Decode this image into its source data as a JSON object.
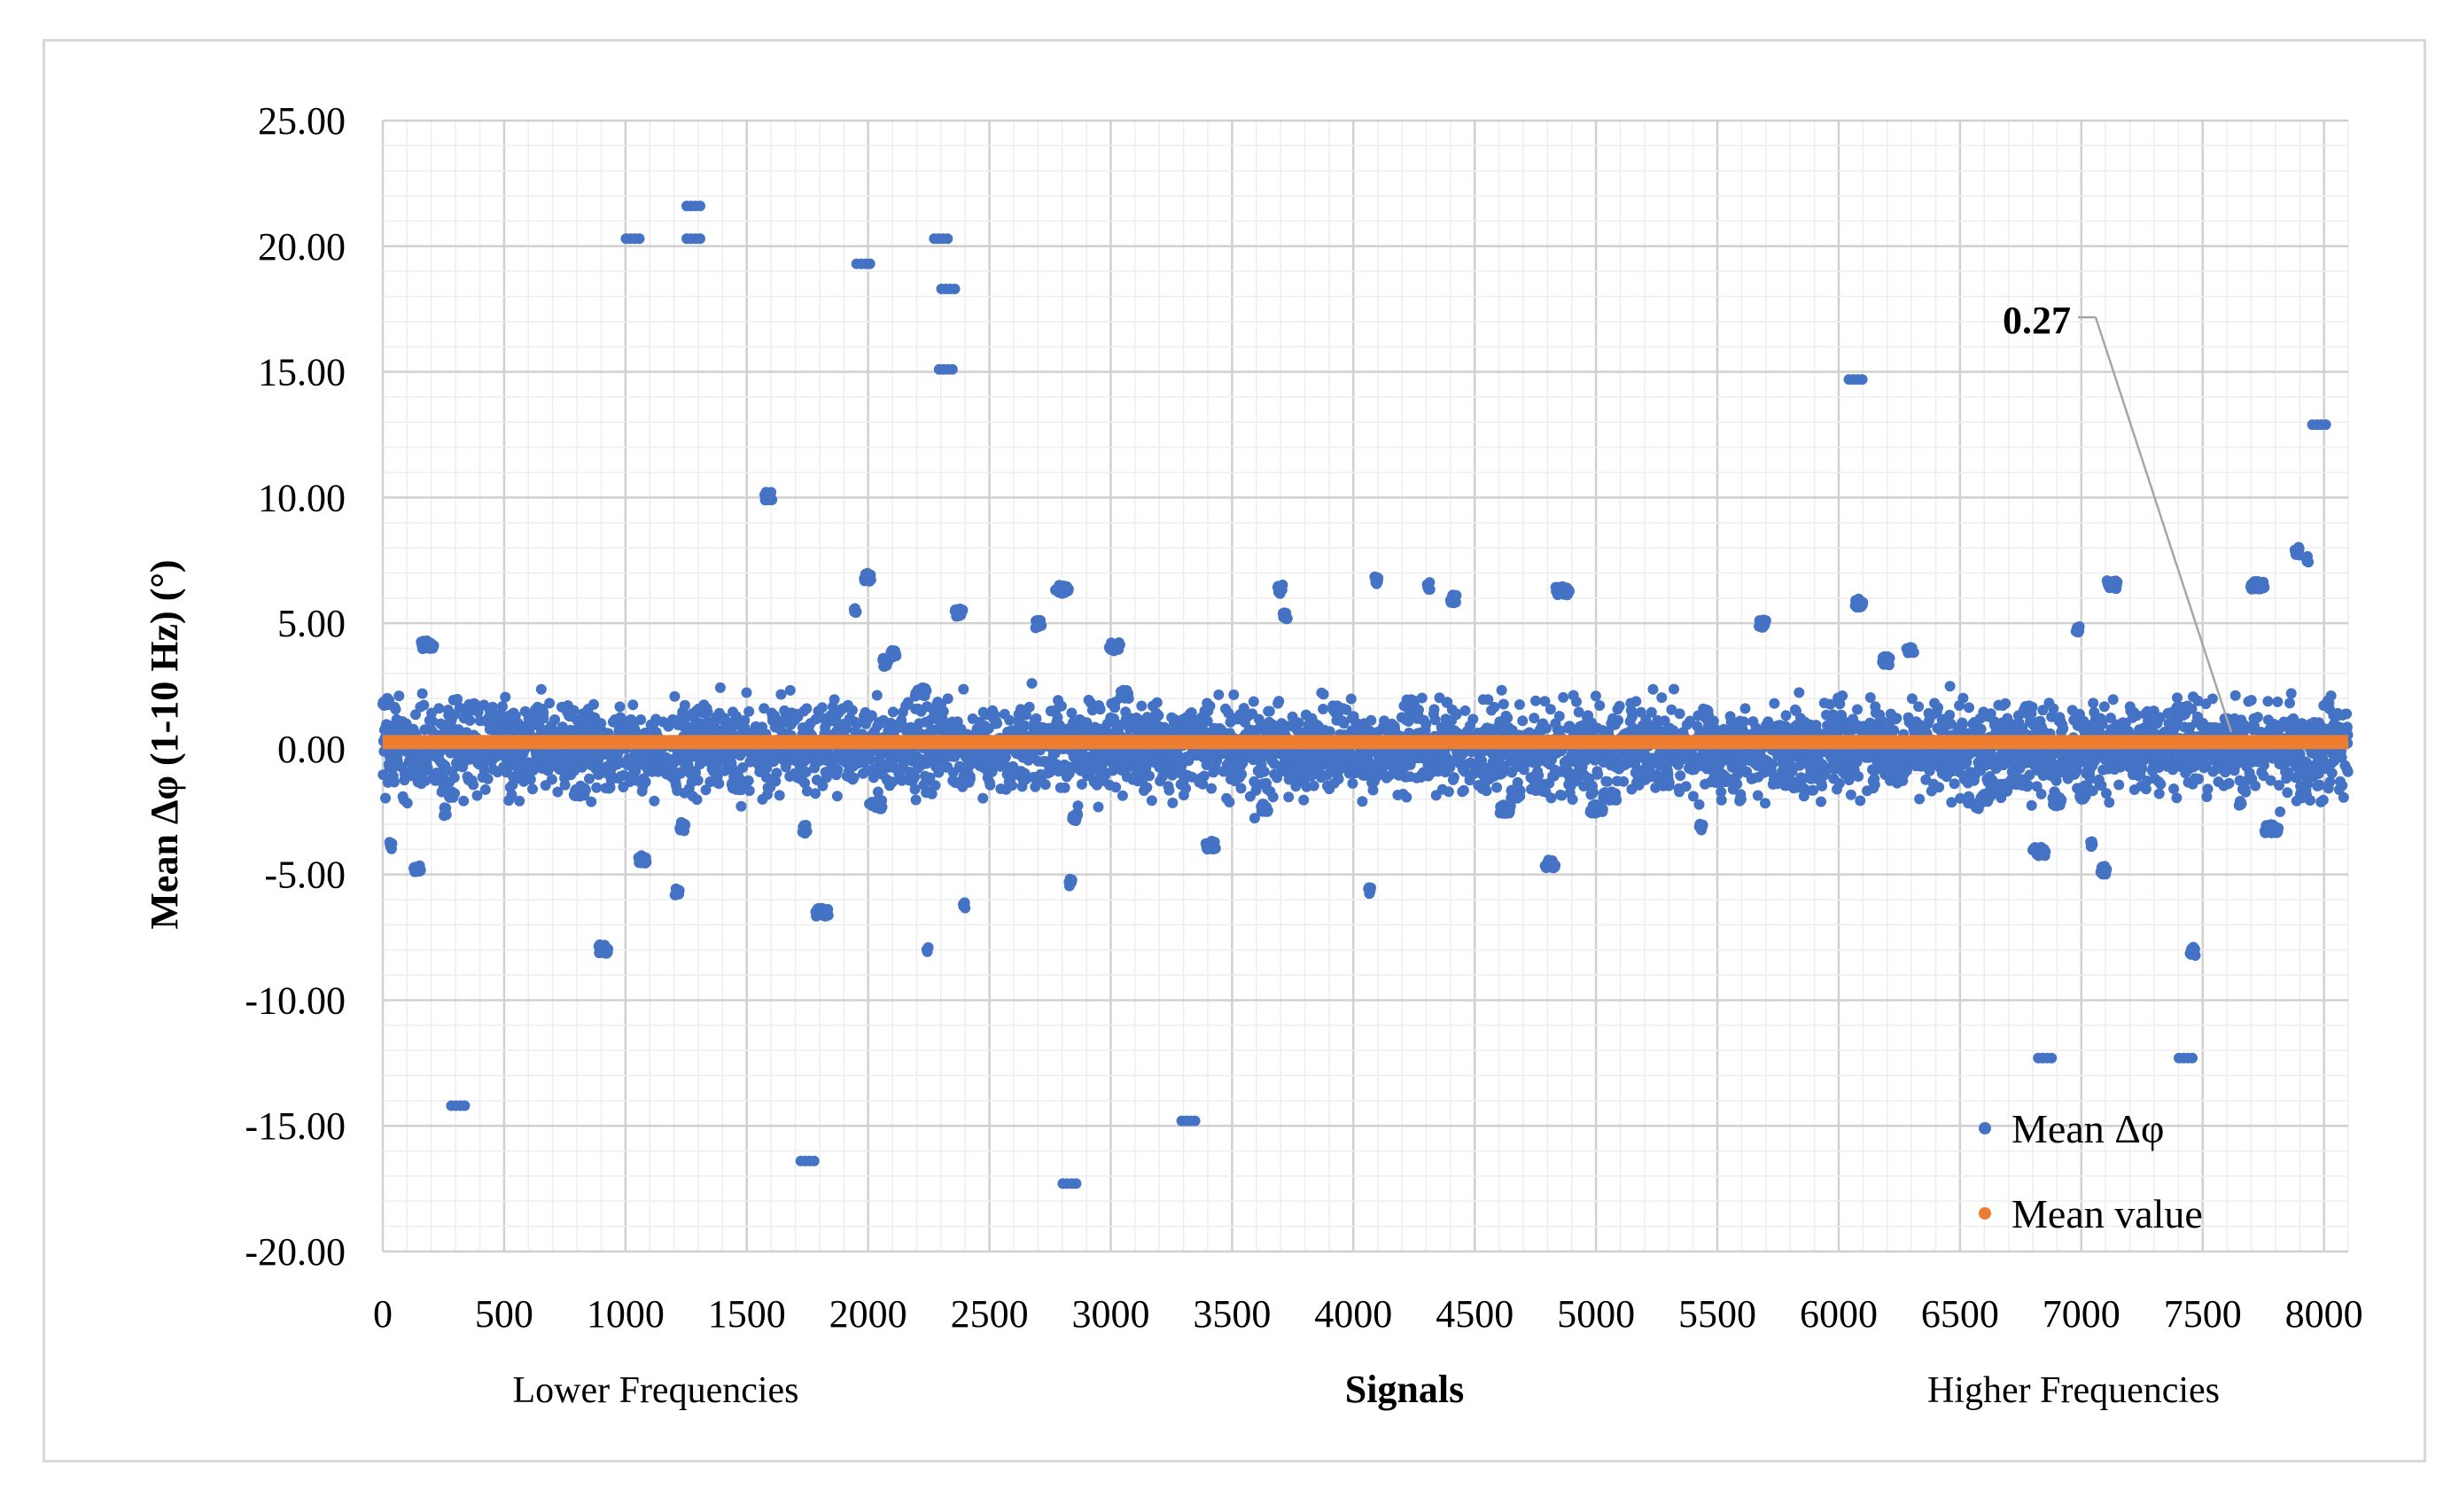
{
  "chart_data": {
    "type": "scatter",
    "title": "",
    "xlabel": "Signals",
    "ylabel": "Mean  Δφ (1-10 Hz)  (°)",
    "xlim": [
      0,
      8100
    ],
    "ylim": [
      -20,
      25
    ],
    "x_ticks": [
      "0",
      "500",
      "1000",
      "1500",
      "2000",
      "2500",
      "3000",
      "3500",
      "4000",
      "4500",
      "5000",
      "5500",
      "6000",
      "6500",
      "7000",
      "7500",
      "8000"
    ],
    "y_ticks": [
      "25.00",
      "20.00",
      "15.00",
      "10.00",
      "5.00",
      "0.00",
      "-5.00",
      "-10.00",
      "-15.00",
      "-20.00"
    ],
    "x_notes": {
      "left": "Lower Frequencies",
      "right": "Higher Frequencies"
    },
    "grid": true,
    "legend_position": "bottom-right",
    "series": [
      {
        "name": "Mean Δφ",
        "color": "#4472C4",
        "n_points": 8100,
        "extremes": [
          {
            "x": 1030,
            "y": 20.3
          },
          {
            "x": 1280,
            "y": 21.6
          },
          {
            "x": 1280,
            "y": 20.3
          },
          {
            "x": 1980,
            "y": 19.3
          },
          {
            "x": 2300,
            "y": 20.3
          },
          {
            "x": 2330,
            "y": 18.3
          },
          {
            "x": 2320,
            "y": 15.1
          },
          {
            "x": 6070,
            "y": 14.7
          },
          {
            "x": 7980,
            "y": 12.9
          },
          {
            "x": 1750,
            "y": -16.4
          },
          {
            "x": 2830,
            "y": -17.3
          },
          {
            "x": 310,
            "y": -14.2
          },
          {
            "x": 3320,
            "y": -14.8
          },
          {
            "x": 6850,
            "y": -12.3
          },
          {
            "x": 7430,
            "y": -12.3
          }
        ]
      },
      {
        "name": "Mean value",
        "color": "#ED7D31",
        "y": 0.27
      }
    ],
    "annotations": [
      {
        "text": "0.27",
        "x": 7620,
        "y": 0.27
      }
    ]
  }
}
